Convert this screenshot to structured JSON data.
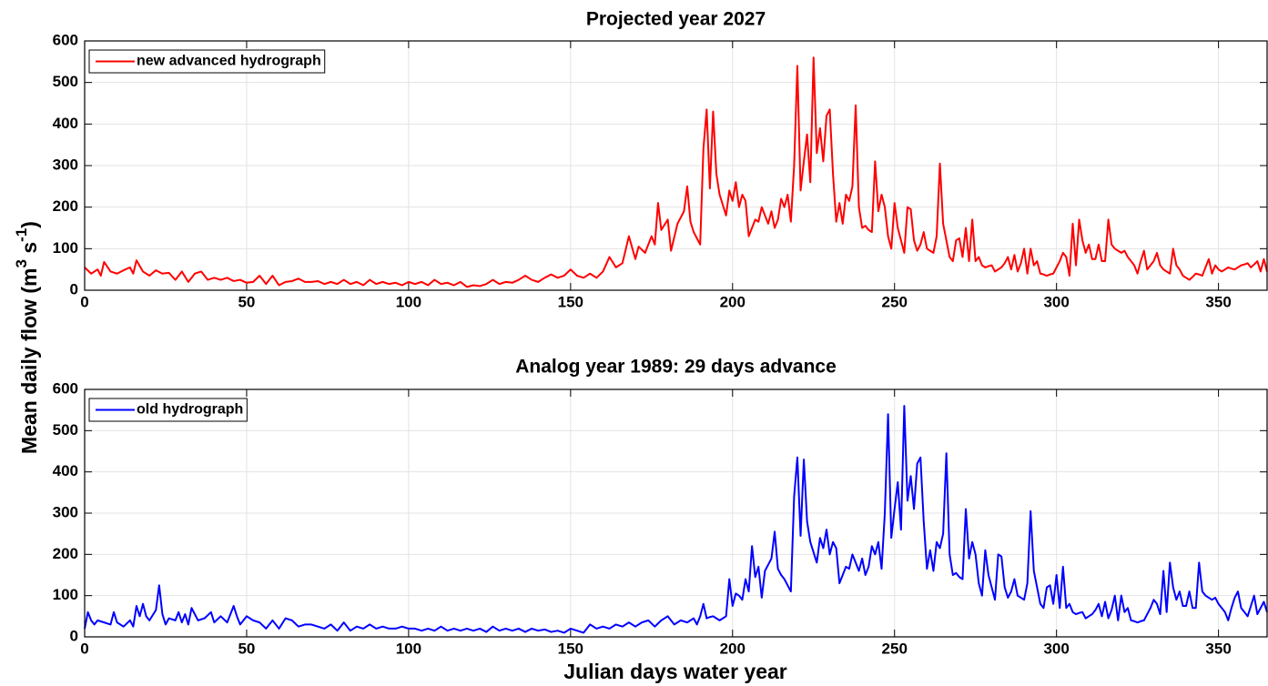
{
  "figure": {
    "y_label": [
      "Mean daily flow (m",
      "3",
      " s",
      "-1",
      ")"
    ],
    "x_label": "Julian days water year"
  },
  "chart_data": [
    {
      "type": "line",
      "title": "Projected year 2027",
      "legend": "upper left",
      "grid": true,
      "xlim": [
        0,
        365
      ],
      "xticks": [
        0,
        50,
        100,
        150,
        200,
        250,
        300,
        350
      ],
      "ylim": [
        0,
        600
      ],
      "yticks": [
        0,
        100,
        200,
        300,
        400,
        500,
        600
      ],
      "x": [
        0,
        2,
        4,
        5,
        6,
        8,
        10,
        12,
        14,
        15,
        16,
        18,
        20,
        22,
        24,
        26,
        28,
        30,
        32,
        34,
        36,
        38,
        40,
        42,
        44,
        46,
        48,
        50,
        52,
        54,
        56,
        58,
        60,
        62,
        64,
        66,
        68,
        70,
        72,
        74,
        76,
        78,
        80,
        82,
        84,
        86,
        88,
        90,
        92,
        94,
        96,
        98,
        100,
        102,
        104,
        106,
        108,
        110,
        112,
        114,
        116,
        118,
        120,
        122,
        124,
        126,
        128,
        130,
        132,
        134,
        136,
        138,
        140,
        142,
        144,
        146,
        148,
        150,
        152,
        154,
        156,
        158,
        160,
        162,
        164,
        166,
        168,
        170,
        171,
        173,
        175,
        176,
        177,
        178,
        180,
        181,
        183,
        185,
        186,
        187,
        188,
        190,
        191,
        192,
        193,
        194,
        195,
        196,
        197,
        198,
        199,
        200,
        201,
        202,
        203,
        204,
        205,
        206,
        207,
        208,
        209,
        210,
        211,
        212,
        213,
        214,
        215,
        216,
        217,
        218,
        219,
        220,
        221,
        222,
        223,
        224,
        225,
        226,
        227,
        228,
        229,
        230,
        231,
        232,
        233,
        234,
        235,
        236,
        237,
        238,
        239,
        240,
        241,
        242,
        243,
        244,
        245,
        246,
        247,
        248,
        249,
        250,
        251,
        252,
        253,
        254,
        255,
        256,
        257,
        258,
        259,
        260,
        261,
        262,
        263,
        264,
        265,
        266,
        267,
        268,
        269,
        270,
        271,
        272,
        273,
        274,
        275,
        276,
        277,
        278,
        279,
        280,
        281,
        282,
        283,
        284,
        285,
        286,
        287,
        288,
        289,
        290,
        291,
        292,
        293,
        294,
        295,
        296,
        297,
        298,
        299,
        300,
        301,
        302,
        303,
        304,
        305,
        306,
        307,
        308,
        309,
        310,
        311,
        312,
        313,
        314,
        315,
        316,
        317,
        318,
        319,
        320,
        321,
        322,
        323,
        324,
        325,
        326,
        327,
        328,
        329,
        330,
        331,
        332,
        333,
        334,
        335,
        336,
        337,
        338,
        339,
        340,
        341,
        342,
        343,
        344,
        345,
        346,
        347,
        348,
        349,
        350,
        351,
        352,
        353,
        354,
        355,
        356,
        357,
        358,
        359,
        360,
        361,
        362,
        363,
        364,
        365
      ],
      "series": [
        {
          "name": "new advanced hydrograph",
          "color": "#ff0000",
          "values": [
            55,
            40,
            50,
            35,
            68,
            45,
            40,
            48,
            55,
            40,
            72,
            45,
            35,
            48,
            40,
            42,
            25,
            45,
            20,
            40,
            45,
            25,
            30,
            25,
            30,
            22,
            25,
            18,
            20,
            35,
            15,
            35,
            12,
            20,
            22,
            28,
            20,
            20,
            22,
            15,
            20,
            15,
            25,
            15,
            20,
            12,
            25,
            15,
            20,
            15,
            18,
            12,
            20,
            15,
            20,
            12,
            25,
            15,
            18,
            12,
            20,
            8,
            12,
            10,
            15,
            25,
            15,
            20,
            18,
            25,
            35,
            25,
            20,
            30,
            38,
            30,
            35,
            50,
            35,
            30,
            40,
            30,
            45,
            80,
            55,
            65,
            130,
            75,
            105,
            90,
            130,
            110,
            210,
            145,
            170,
            95,
            160,
            190,
            250,
            165,
            140,
            110,
            340,
            435,
            245,
            430,
            280,
            230,
            205,
            180,
            240,
            215,
            260,
            200,
            230,
            215,
            130,
            150,
            170,
            165,
            200,
            180,
            160,
            190,
            150,
            170,
            220,
            200,
            230,
            165,
            300,
            540,
            240,
            310,
            375,
            260,
            560,
            330,
            390,
            310,
            420,
            435,
            280,
            165,
            210,
            160,
            230,
            215,
            250,
            445,
            200,
            150,
            155,
            145,
            140,
            310,
            190,
            230,
            200,
            130,
            100,
            210,
            150,
            120,
            90,
            200,
            195,
            120,
            95,
            110,
            140,
            100,
            95,
            90,
            130,
            305,
            160,
            120,
            80,
            70,
            120,
            125,
            80,
            150,
            70,
            170,
            70,
            80,
            60,
            55,
            58,
            60,
            45,
            50,
            55,
            65,
            80,
            50,
            85,
            45,
            65,
            100,
            40,
            100,
            60,
            70,
            40,
            38,
            35,
            38,
            40,
            55,
            70,
            90,
            80,
            35,
            160,
            60,
            170,
            120,
            90,
            110,
            75,
            75,
            110,
            70,
            70,
            170,
            110,
            100,
            95,
            90,
            95,
            80,
            70,
            60,
            40,
            70,
            95,
            50,
            60,
            70,
            90,
            60,
            50,
            45,
            40,
            100,
            60,
            50,
            35,
            30,
            25,
            32,
            40,
            38,
            35,
            55,
            75,
            40,
            60,
            50,
            45,
            50,
            55,
            52,
            50,
            55,
            60,
            62,
            65,
            55,
            62,
            70,
            45,
            75,
            45
          ]
        }
      ]
    },
    {
      "type": "line",
      "title": "Analog year 1989: 29 days advance",
      "legend": "upper left",
      "grid": true,
      "xlim": [
        0,
        365
      ],
      "xticks": [
        0,
        50,
        100,
        150,
        200,
        250,
        300,
        350
      ],
      "ylim": [
        0,
        600
      ],
      "yticks": [
        0,
        100,
        200,
        300,
        400,
        500,
        600
      ],
      "x": [
        0,
        1,
        2,
        3,
        4,
        6,
        8,
        9,
        10,
        12,
        14,
        15,
        16,
        17,
        18,
        19,
        20,
        22,
        23,
        24,
        25,
        26,
        28,
        29,
        30,
        31,
        32,
        33,
        35,
        37,
        39,
        40,
        42,
        44,
        46,
        47,
        48,
        50,
        52,
        54,
        56,
        58,
        60,
        62,
        64,
        66,
        68,
        70,
        72,
        74,
        76,
        78,
        80,
        82,
        84,
        86,
        88,
        90,
        92,
        94,
        96,
        98,
        100,
        102,
        104,
        106,
        108,
        110,
        112,
        114,
        116,
        118,
        120,
        122,
        124,
        126,
        128,
        130,
        132,
        134,
        136,
        138,
        140,
        142,
        144,
        146,
        148,
        150,
        152,
        154,
        156,
        158,
        160,
        162,
        164,
        166,
        168,
        170,
        172,
        174,
        176,
        178,
        180,
        182,
        184,
        186,
        188,
        189,
        190,
        191,
        192,
        193,
        194,
        195,
        196,
        197,
        198,
        199,
        200,
        201,
        202,
        203,
        204,
        205,
        206,
        207,
        208,
        209,
        210,
        211,
        212,
        213,
        214,
        215,
        216,
        217,
        218,
        219,
        220,
        221,
        222,
        223,
        224,
        225,
        226,
        227,
        228,
        229,
        230,
        231,
        232,
        233,
        234,
        235,
        236,
        237,
        238,
        239,
        240,
        241,
        242,
        243,
        244,
        245,
        246,
        247,
        248,
        249,
        250,
        251,
        252,
        253,
        254,
        255,
        256,
        257,
        258,
        259,
        260,
        261,
        262,
        263,
        264,
        265,
        266,
        267,
        268,
        269,
        270,
        271,
        272,
        273,
        274,
        275,
        276,
        277,
        278,
        279,
        280,
        281,
        282,
        283,
        284,
        285,
        286,
        287,
        288,
        289,
        290,
        291,
        292,
        293,
        294,
        295,
        296,
        297,
        298,
        299,
        300,
        301,
        302,
        303,
        304,
        305,
        306,
        307,
        308,
        309,
        310,
        311,
        312,
        313,
        314,
        315,
        316,
        317,
        318,
        319,
        320,
        321,
        322,
        323,
        324,
        325,
        326,
        327,
        328,
        329,
        330,
        331,
        332,
        333,
        334,
        335,
        336,
        337,
        338,
        339,
        340,
        341,
        342,
        343,
        344,
        345,
        346,
        347,
        348,
        349,
        350,
        351,
        352,
        353,
        354,
        355,
        356,
        357,
        358,
        359,
        360,
        361,
        362,
        363,
        364,
        365
      ],
      "series": [
        {
          "name": "old hydrograph",
          "color": "#0000ff",
          "values": [
            20,
            60,
            40,
            30,
            40,
            35,
            30,
            60,
            35,
            25,
            40,
            25,
            75,
            50,
            80,
            50,
            40,
            65,
            125,
            55,
            30,
            45,
            40,
            60,
            35,
            55,
            30,
            70,
            40,
            45,
            60,
            35,
            50,
            35,
            75,
            50,
            30,
            50,
            40,
            35,
            20,
            40,
            20,
            45,
            40,
            25,
            30,
            30,
            25,
            20,
            30,
            15,
            35,
            15,
            25,
            20,
            30,
            20,
            25,
            20,
            20,
            25,
            20,
            20,
            15,
            20,
            15,
            25,
            15,
            20,
            15,
            20,
            15,
            20,
            12,
            25,
            15,
            20,
            15,
            20,
            12,
            20,
            15,
            18,
            12,
            15,
            10,
            20,
            15,
            10,
            30,
            20,
            25,
            20,
            30,
            25,
            35,
            25,
            35,
            40,
            25,
            40,
            50,
            30,
            40,
            35,
            45,
            30,
            50,
            80,
            45,
            48,
            50,
            45,
            40,
            45,
            50,
            140,
            75,
            105,
            100,
            90,
            140,
            110,
            220,
            145,
            170,
            95,
            160,
            175,
            190,
            255,
            165,
            150,
            140,
            125,
            110,
            340,
            435,
            245,
            430,
            280,
            230,
            205,
            180,
            240,
            215,
            260,
            200,
            230,
            215,
            130,
            150,
            170,
            165,
            200,
            180,
            160,
            190,
            150,
            170,
            220,
            200,
            230,
            165,
            300,
            540,
            240,
            310,
            375,
            260,
            560,
            330,
            390,
            310,
            420,
            435,
            280,
            165,
            210,
            160,
            230,
            215,
            250,
            445,
            200,
            150,
            155,
            145,
            140,
            310,
            190,
            230,
            200,
            130,
            100,
            210,
            150,
            120,
            90,
            200,
            195,
            120,
            95,
            110,
            140,
            100,
            95,
            90,
            130,
            305,
            160,
            120,
            80,
            70,
            120,
            125,
            80,
            150,
            70,
            170,
            70,
            80,
            60,
            55,
            58,
            60,
            45,
            50,
            55,
            65,
            80,
            50,
            85,
            45,
            65,
            100,
            40,
            100,
            60,
            70,
            40,
            38,
            35,
            38,
            40,
            55,
            70,
            90,
            80,
            55,
            160,
            60,
            180,
            120,
            90,
            110,
            75,
            75,
            110,
            70,
            70,
            180,
            110,
            100,
            95,
            90,
            95,
            80,
            70,
            60,
            40,
            70,
            95,
            110,
            70,
            60,
            50,
            75,
            100,
            55,
            70,
            85,
            60
          ]
        }
      ]
    }
  ]
}
